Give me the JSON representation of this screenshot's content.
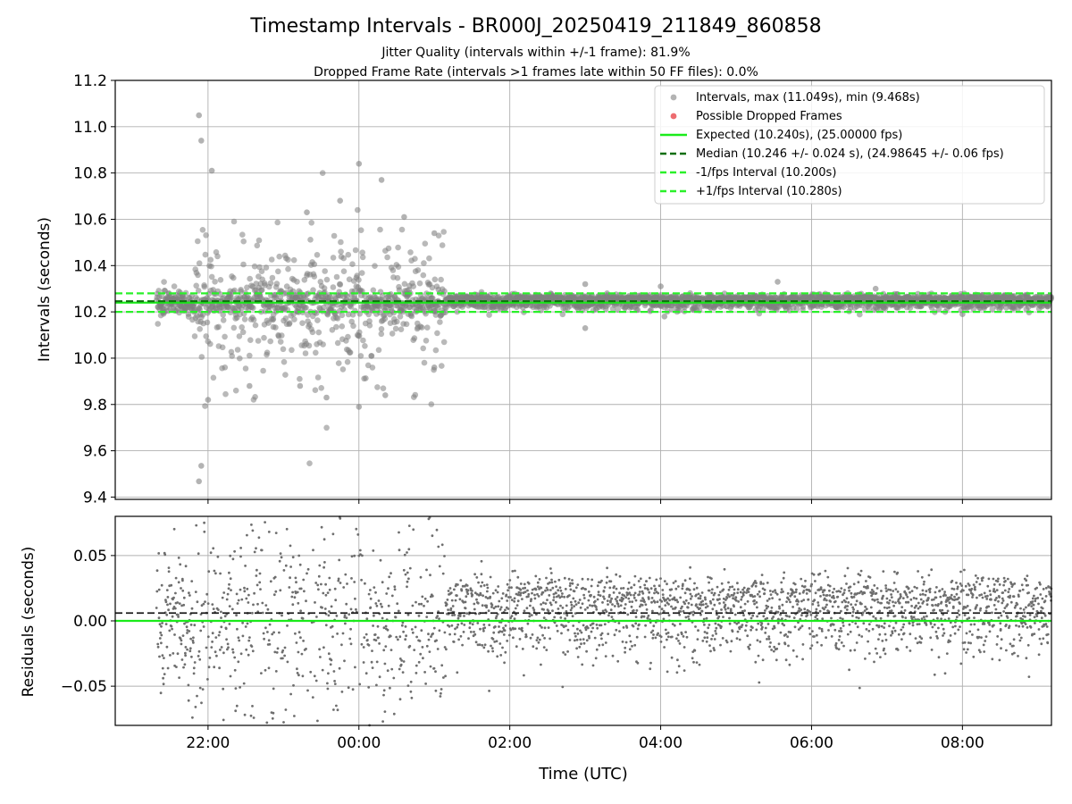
{
  "figure": {
    "title": "Timestamp Intervals - BR000J_20250419_211849_860858",
    "subtitle_1": "Jitter Quality (intervals within +/-1 frame): 81.9%",
    "subtitle_2": "Dropped Frame Rate (intervals >1 frames late within 50 FF files): 0.0%"
  },
  "colors": {
    "scatter": "#808080",
    "dropped": "#e8474c",
    "expected": "#1aeb1a",
    "median": "#0f6e0f",
    "bound": "#2af02a",
    "grid": "#b0b0b0"
  },
  "chart_data": [
    {
      "type": "scatter",
      "ylabel": "Intervals (seconds)",
      "xlim_hours": [
        20.77,
        33.18
      ],
      "ylim": [
        9.39,
        11.2
      ],
      "yticks": [
        "9.4",
        "9.6",
        "9.8",
        "10.0",
        "10.2",
        "10.4",
        "10.6",
        "10.8",
        "11.0",
        "11.2"
      ],
      "ytick_values": [
        9.4,
        9.6,
        9.8,
        10.0,
        10.2,
        10.4,
        10.6,
        10.8,
        11.0,
        11.2
      ],
      "grid": true,
      "legend_position": "top-right",
      "legend": [
        "Intervals, max (11.049s), min (9.468s)",
        "Possible Dropped Frames",
        "Expected (10.240s), (25.00000 fps)",
        "Median (10.246 +/- 0.024 s), (24.98645 +/- 0.06 fps)",
        "-1/fps Interval (10.200s)",
        "+1/fps Interval (10.280s)"
      ],
      "hlines": {
        "expected": 10.24,
        "median": 10.246,
        "minus_one_frame": 10.2,
        "plus_one_frame": 10.28
      },
      "series": {
        "time_start_hours": 21.32,
        "time_end_hours": 33.18,
        "noisy_until_hours": 25.15,
        "noisy_spread_sd": 0.18,
        "stable_spread_sd": 0.025,
        "outliers": [
          {
            "t": 21.88,
            "y": 11.049
          },
          {
            "t": 21.91,
            "y": 10.94
          },
          {
            "t": 22.05,
            "y": 10.81
          },
          {
            "t": 21.88,
            "y": 9.468
          },
          {
            "t": 21.91,
            "y": 9.535
          },
          {
            "t": 23.31,
            "y": 10.63
          },
          {
            "t": 24.0,
            "y": 10.84
          },
          {
            "t": 24.3,
            "y": 10.77
          },
          {
            "t": 24.0,
            "y": 9.79
          },
          {
            "t": 22.0,
            "y": 9.82
          },
          {
            "t": 23.75,
            "y": 10.68
          },
          {
            "t": 24.6,
            "y": 10.61
          },
          {
            "t": 25.0,
            "y": 10.54
          },
          {
            "t": 23.57,
            "y": 9.83
          },
          {
            "t": 24.35,
            "y": 9.84
          },
          {
            "t": 25.0,
            "y": 9.96
          },
          {
            "t": 23.22,
            "y": 9.88
          },
          {
            "t": 22.55,
            "y": 9.88
          },
          {
            "t": 27.0,
            "y": 10.13
          },
          {
            "t": 27.0,
            "y": 10.32
          },
          {
            "t": 28.0,
            "y": 10.31
          },
          {
            "t": 28.05,
            "y": 10.18
          },
          {
            "t": 29.55,
            "y": 10.33
          },
          {
            "t": 30.85,
            "y": 10.3
          },
          {
            "t": 32.0,
            "y": 10.19
          }
        ]
      }
    },
    {
      "type": "scatter",
      "xlabel": "Time (UTC)",
      "ylabel": "Residuals (seconds)",
      "xlim_hours": [
        20.77,
        33.18
      ],
      "ylim": [
        -0.08,
        0.08
      ],
      "yticks": [
        "−0.05",
        "0.00",
        "0.05"
      ],
      "ytick_values": [
        -0.05,
        0.0,
        0.05
      ],
      "xticks": [
        "22:00",
        "00:00",
        "02:00",
        "04:00",
        "06:00",
        "08:00"
      ],
      "xtick_hours": [
        22,
        24,
        26,
        28,
        30,
        32
      ],
      "grid": true,
      "hlines": {
        "zero": 0.0,
        "median_residual": 0.006
      }
    }
  ]
}
